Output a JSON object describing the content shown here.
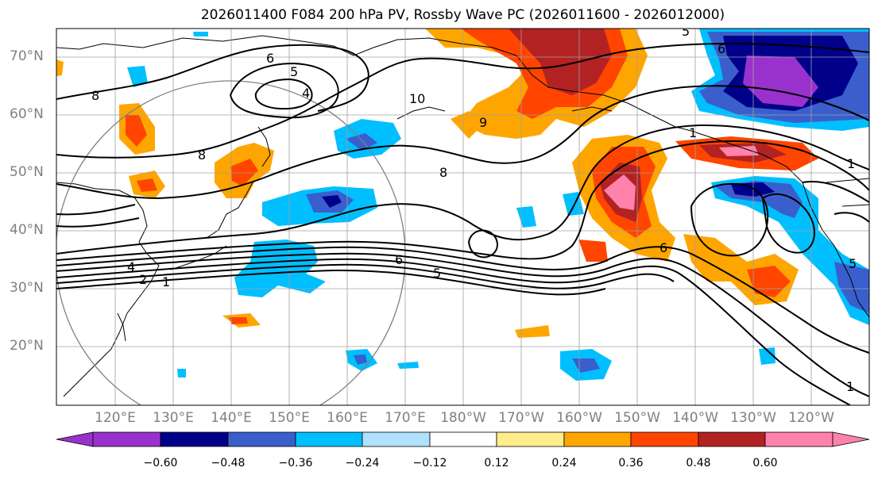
{
  "title": "2026011400 F084 200 hPa PV, Rossby Wave PC (2026011600 - 2026012000)",
  "lat_labels": [
    "70°N",
    "60°N",
    "50°N",
    "40°N",
    "30°N",
    "20°N"
  ],
  "lon_labels": [
    "120°E",
    "130°E",
    "140°E",
    "150°E",
    "160°E",
    "170°E",
    "180°W",
    "170°W",
    "160°W",
    "150°W",
    "140°W",
    "130°W",
    "120°W"
  ],
  "colorbar": {
    "colors": [
      "#9932cc",
      "#00008b",
      "#3a5fcd",
      "#00bfff",
      "#b0e2ff",
      "#ffffff",
      "#ffec8b",
      "#ffa500",
      "#ff4500",
      "#b22222",
      "#ff82ab"
    ],
    "tick_labels": [
      "−0.60",
      "−0.48",
      "−0.36",
      "−0.24",
      "−0.12",
      "0.12",
      "0.24",
      "0.36",
      "0.48",
      "0.60"
    ]
  },
  "contour_labels": [
    "6",
    "5",
    "4",
    "8",
    "9",
    "10",
    "8",
    "6",
    "5",
    "4",
    "2",
    "1",
    "6",
    "5",
    "1",
    "1",
    "8",
    "6",
    "5",
    "1"
  ]
}
